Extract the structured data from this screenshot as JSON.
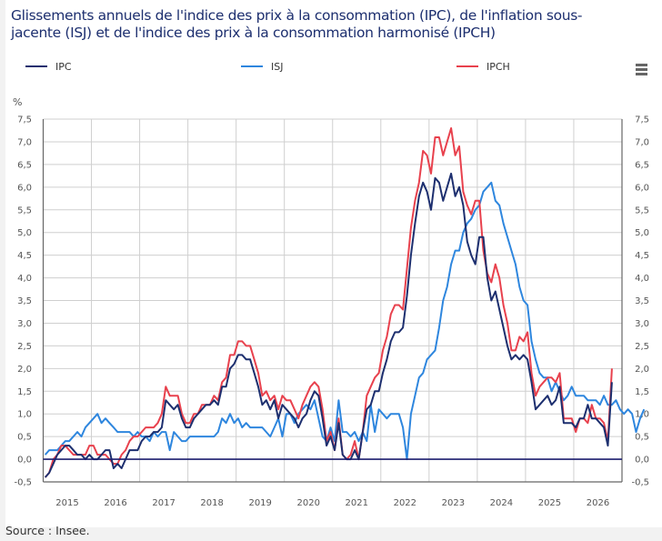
{
  "title": "Glissements annuels de l'indice des prix à la consommation (IPC), de l'inflation sous-jacente (ISJ) et de l'indice des prix à la consommation harmonisé (IPCH)",
  "source": "Source : Insee.",
  "menu_icon": "hamburger-menu-icon",
  "unit": "%",
  "legend": [
    {
      "label": "IPC",
      "color": "#1d2f6f"
    },
    {
      "label": "ISJ",
      "color": "#2e86de"
    },
    {
      "label": "IPCH",
      "color": "#e8414d"
    }
  ],
  "chart_data": {
    "type": "line",
    "title": "Glissements annuels de l'indice des prix à la consommation (IPC), de l'inflation sous-jacente (ISJ) et de l'indice des prix à la consommation harmonisé (IPCH)",
    "xlabel": "",
    "ylabel": "%",
    "x_start": "2015-01",
    "x_frequency": "monthly",
    "xlim": [
      "2015-01",
      "2026-12"
    ],
    "ylim": [
      -0.5,
      7.5
    ],
    "y_ticks": [
      "-0,5",
      "0,0",
      "0,5",
      "1,0",
      "1,5",
      "2,0",
      "2,5",
      "3,0",
      "3,5",
      "4,0",
      "4,5",
      "5,0",
      "5,5",
      "6,0",
      "6,5",
      "7,0",
      "7,5"
    ],
    "x_ticks": [
      "2015",
      "2016",
      "2017",
      "2018",
      "2019",
      "2020",
      "2021",
      "2022",
      "2023",
      "2024",
      "2025",
      "2026"
    ],
    "grid": true,
    "legend_position": "top",
    "series": [
      {
        "name": "IPC",
        "color": "#1d2f6f",
        "values": [
          -0.4,
          -0.3,
          -0.1,
          0.1,
          0.2,
          0.3,
          0.3,
          0.2,
          0.1,
          0.1,
          0.0,
          0.1,
          0.0,
          0.0,
          0.1,
          0.2,
          0.2,
          -0.2,
          -0.1,
          -0.2,
          0.0,
          0.2,
          0.2,
          0.2,
          0.4,
          0.5,
          0.5,
          0.6,
          0.6,
          0.7,
          1.3,
          1.2,
          1.1,
          1.2,
          0.9,
          0.7,
          0.7,
          0.9,
          1.0,
          1.1,
          1.2,
          1.2,
          1.3,
          1.2,
          1.6,
          1.6,
          2.0,
          2.1,
          2.3,
          2.3,
          2.2,
          2.2,
          1.9,
          1.6,
          1.2,
          1.3,
          1.1,
          1.3,
          0.9,
          1.2,
          1.1,
          1.0,
          0.9,
          0.7,
          0.9,
          1.0,
          1.3,
          1.5,
          1.4,
          0.9,
          0.3,
          0.5,
          0.2,
          0.8,
          0.1,
          0.0,
          0.0,
          0.2,
          0.0,
          0.6,
          1.1,
          1.2,
          1.5,
          1.5,
          1.9,
          2.2,
          2.6,
          2.8,
          2.8,
          2.9,
          3.6,
          4.5,
          5.2,
          5.8,
          6.1,
          5.9,
          5.5,
          6.2,
          6.1,
          5.7,
          6.0,
          6.3,
          5.8,
          6.0,
          5.6,
          4.8,
          4.5,
          4.3,
          4.9,
          4.9,
          4.0,
          3.5,
          3.7,
          3.3,
          2.9,
          2.5,
          2.2,
          2.3,
          2.2,
          2.3,
          2.2,
          1.7,
          1.1,
          1.2,
          1.3,
          1.4,
          1.2,
          1.3,
          1.6,
          0.8,
          0.8,
          0.8,
          0.7,
          0.9,
          0.9,
          1.2,
          0.9,
          0.9,
          0.8,
          0.7,
          0.3,
          1.7
        ]
      },
      {
        "name": "ISJ",
        "color": "#2e86de",
        "values": [
          0.1,
          0.2,
          0.2,
          0.2,
          0.3,
          0.4,
          0.4,
          0.5,
          0.6,
          0.5,
          0.7,
          0.8,
          0.9,
          1.0,
          0.8,
          0.9,
          0.8,
          0.7,
          0.6,
          0.6,
          0.6,
          0.6,
          0.5,
          0.6,
          0.5,
          0.5,
          0.4,
          0.6,
          0.5,
          0.6,
          0.6,
          0.2,
          0.6,
          0.5,
          0.4,
          0.4,
          0.5,
          0.5,
          0.5,
          0.5,
          0.5,
          0.5,
          0.5,
          0.6,
          0.9,
          0.8,
          1.0,
          0.8,
          0.9,
          0.7,
          0.8,
          0.7,
          0.7,
          0.7,
          0.7,
          0.6,
          0.5,
          0.7,
          0.9,
          0.5,
          1.0,
          1.0,
          0.8,
          1.0,
          1.1,
          1.2,
          1.1,
          1.3,
          0.9,
          0.5,
          0.4,
          0.7,
          0.4,
          1.3,
          0.6,
          0.6,
          0.5,
          0.6,
          0.4,
          0.6,
          0.4,
          1.2,
          0.6,
          1.1,
          1.0,
          0.9,
          1.0,
          1.0,
          1.0,
          0.7,
          0.0,
          1.0,
          1.4,
          1.8,
          1.9,
          2.2,
          2.3,
          2.4,
          2.9,
          3.5,
          3.8,
          4.3,
          4.6,
          4.6,
          5.0,
          5.2,
          5.3,
          5.5,
          5.6,
          5.9,
          6.0,
          6.1,
          5.7,
          5.6,
          5.2,
          4.9,
          4.6,
          4.3,
          3.8,
          3.5,
          3.4,
          2.6,
          2.2,
          1.9,
          1.8,
          1.8,
          1.5,
          1.7,
          1.5,
          1.3,
          1.4,
          1.6,
          1.4,
          1.4,
          1.4,
          1.3,
          1.3,
          1.3,
          1.2,
          1.4,
          1.2,
          1.2,
          1.3,
          1.1,
          1.0,
          1.1,
          1.0,
          0.6,
          0.9,
          1.1
        ]
      },
      {
        "name": "IPCH",
        "color": "#e8414d",
        "values": [
          -0.4,
          -0.3,
          0.0,
          0.1,
          0.3,
          0.3,
          0.2,
          0.1,
          0.1,
          0.1,
          0.1,
          0.3,
          0.3,
          0.1,
          0.1,
          0.1,
          0.0,
          -0.1,
          -0.1,
          0.1,
          0.2,
          0.4,
          0.5,
          0.5,
          0.6,
          0.7,
          0.7,
          0.7,
          0.8,
          1.0,
          1.6,
          1.4,
          1.4,
          1.4,
          1.0,
          0.8,
          0.8,
          1.0,
          1.0,
          1.2,
          1.2,
          1.2,
          1.4,
          1.3,
          1.7,
          1.8,
          2.3,
          2.3,
          2.6,
          2.6,
          2.5,
          2.5,
          2.2,
          1.9,
          1.4,
          1.5,
          1.3,
          1.4,
          1.1,
          1.4,
          1.3,
          1.3,
          1.1,
          0.9,
          1.2,
          1.4,
          1.6,
          1.7,
          1.6,
          1.1,
          0.4,
          0.6,
          0.2,
          0.9,
          0.1,
          0.0,
          0.1,
          0.4,
          0.0,
          0.6,
          1.4,
          1.6,
          1.8,
          1.9,
          2.4,
          2.7,
          3.2,
          3.4,
          3.4,
          3.3,
          4.2,
          5.1,
          5.7,
          6.1,
          6.8,
          6.7,
          6.3,
          7.1,
          7.1,
          6.7,
          7.0,
          7.3,
          6.7,
          6.9,
          5.9,
          5.6,
          5.4,
          5.7,
          5.7,
          4.6,
          4.1,
          3.9,
          4.3,
          4.0,
          3.4,
          3.0,
          2.4,
          2.4,
          2.7,
          2.6,
          2.8,
          1.9,
          1.4,
          1.6,
          1.7,
          1.8,
          1.8,
          1.7,
          1.9,
          0.9,
          0.9,
          0.9,
          0.6,
          0.9,
          0.9,
          0.8,
          1.2,
          0.9,
          0.9,
          0.8,
          0.4,
          2.0
        ]
      }
    ]
  }
}
